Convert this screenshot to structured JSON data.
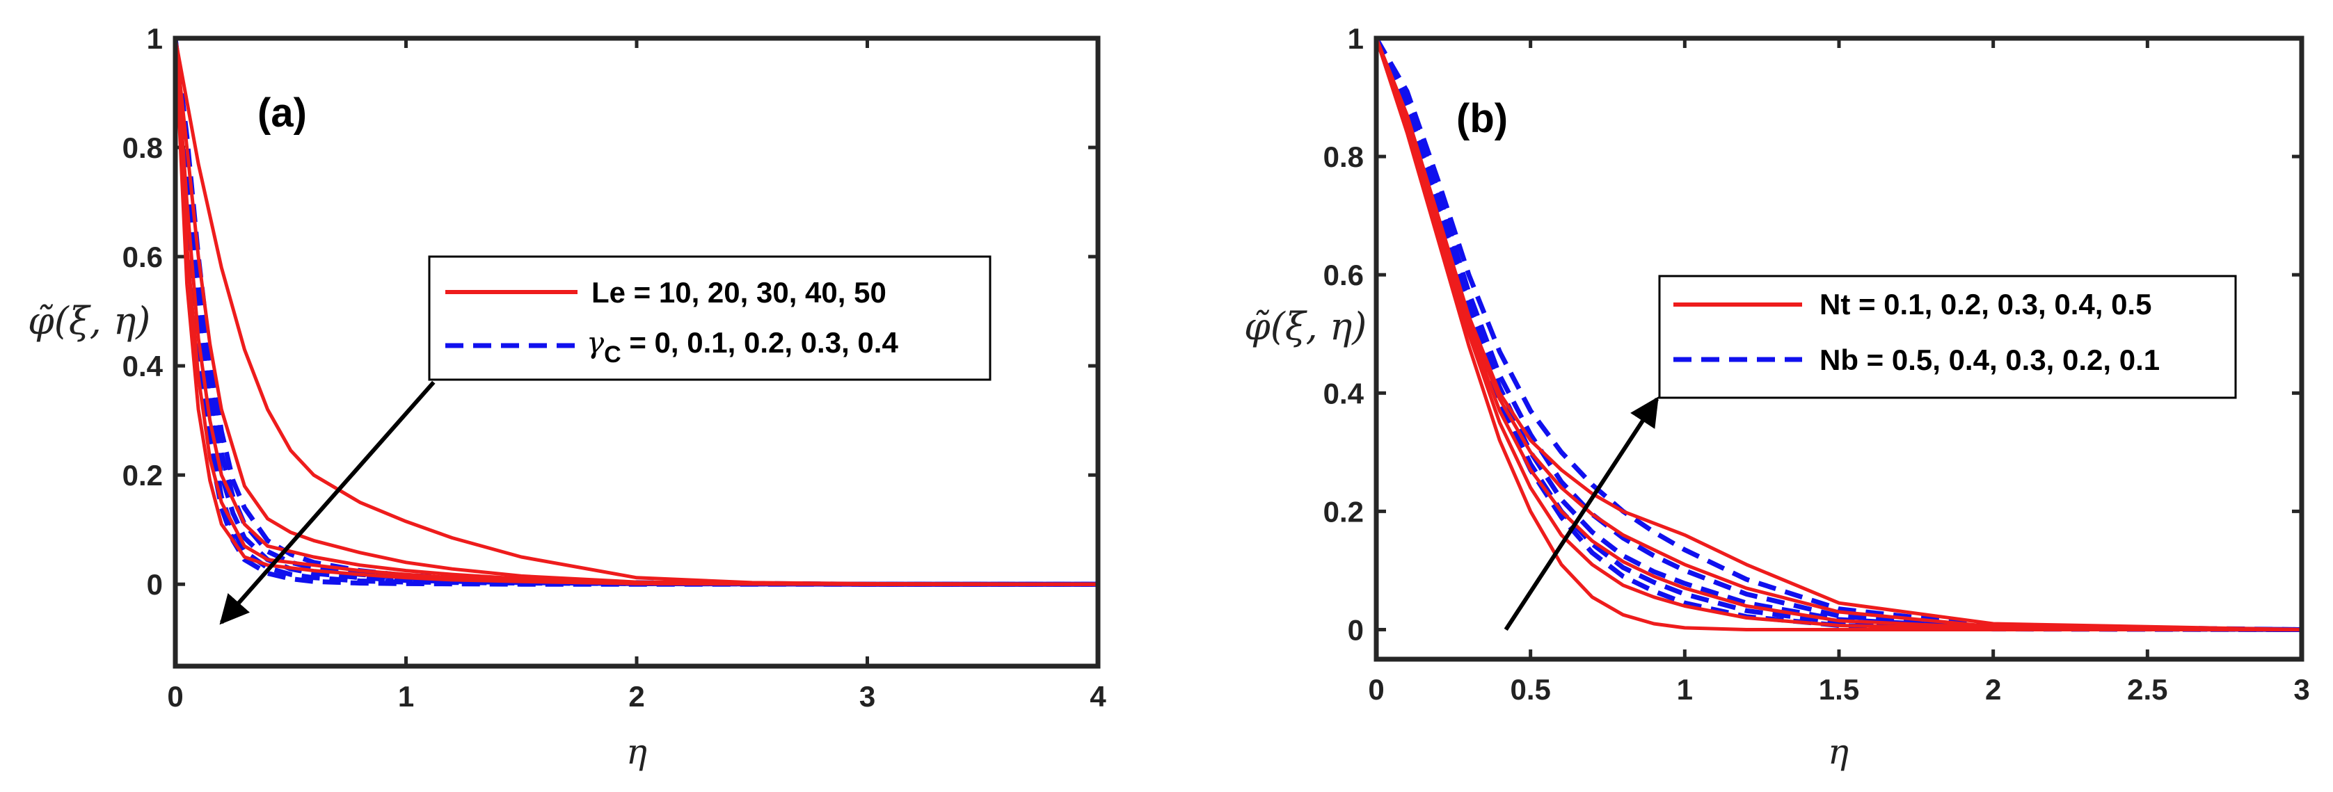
{
  "chart_data": [
    {
      "id": "a",
      "type": "line",
      "panel_label": "(a)",
      "xlabel": "η",
      "ylabel": "φ̃(ξ, η)",
      "xlim": [
        0,
        4
      ],
      "ylim": [
        -0.15,
        1
      ],
      "xticks": [
        0,
        1,
        2,
        3,
        4
      ],
      "xtick_labels": [
        "0",
        "1",
        "2",
        "3",
        "4"
      ],
      "yticks": [
        0,
        0.2,
        0.4,
        0.6,
        0.8,
        1
      ],
      "ytick_labels": [
        "0",
        "0.2",
        "0.4",
        "0.6",
        "0.8",
        "1"
      ],
      "legend": [
        {
          "label": "Le = 10, 20, 30, 40, 50",
          "style": "solid",
          "color": "#ee1c1c"
        },
        {
          "label": "0, 0.1, 0.2, 0.3, 0.4",
          "symbol": "γ",
          "subscript": "C",
          "prefix_eq": " = ",
          "style": "dashed",
          "color": "#1010ee"
        }
      ],
      "series": [
        {
          "name": "Le = 10",
          "style": "solid",
          "color": "#ee1c1c",
          "x": [
            0,
            0.1,
            0.2,
            0.3,
            0.4,
            0.5,
            0.6,
            0.8,
            1.0,
            1.2,
            1.5,
            2.0,
            2.5,
            3.0,
            4.0
          ],
          "y": [
            1,
            0.77,
            0.58,
            0.43,
            0.32,
            0.245,
            0.2,
            0.15,
            0.115,
            0.085,
            0.05,
            0.012,
            0.003,
            0.001,
            0
          ]
        },
        {
          "name": "Le = 20",
          "style": "solid",
          "color": "#ee1c1c",
          "x": [
            0,
            0.05,
            0.1,
            0.15,
            0.2,
            0.3,
            0.4,
            0.5,
            0.6,
            0.8,
            1.0,
            1.2,
            1.5,
            2.0,
            3.0,
            4.0
          ],
          "y": [
            1,
            0.8,
            0.6,
            0.44,
            0.32,
            0.18,
            0.12,
            0.095,
            0.08,
            0.058,
            0.04,
            0.028,
            0.015,
            0.004,
            0,
            0
          ]
        },
        {
          "name": "Le = 30",
          "style": "solid",
          "color": "#ee1c1c",
          "x": [
            0,
            0.05,
            0.1,
            0.15,
            0.2,
            0.3,
            0.4,
            0.5,
            0.6,
            0.8,
            1.0,
            1.2,
            1.5,
            2.0,
            3.0,
            4.0
          ],
          "y": [
            1,
            0.7,
            0.45,
            0.3,
            0.2,
            0.11,
            0.07,
            0.06,
            0.05,
            0.035,
            0.025,
            0.018,
            0.01,
            0.003,
            0,
            0
          ]
        },
        {
          "name": "Le = 40",
          "style": "solid",
          "color": "#ee1c1c",
          "x": [
            0,
            0.05,
            0.1,
            0.15,
            0.2,
            0.3,
            0.4,
            0.5,
            0.6,
            0.8,
            1.0,
            1.2,
            1.5,
            2.0,
            3.0,
            4.0
          ],
          "y": [
            1,
            0.62,
            0.38,
            0.23,
            0.15,
            0.07,
            0.045,
            0.04,
            0.035,
            0.025,
            0.018,
            0.012,
            0.007,
            0.002,
            0,
            0
          ]
        },
        {
          "name": "Le = 50",
          "style": "solid",
          "color": "#ee1c1c",
          "x": [
            0,
            0.05,
            0.1,
            0.15,
            0.2,
            0.3,
            0.4,
            0.5,
            0.6,
            0.8,
            1.0,
            1.2,
            1.5,
            2.0,
            3.0,
            4.0
          ],
          "y": [
            1,
            0.55,
            0.32,
            0.19,
            0.11,
            0.05,
            0.035,
            0.03,
            0.025,
            0.018,
            0.012,
            0.008,
            0.005,
            0.001,
            0,
            0
          ]
        },
        {
          "name": "γC = 0",
          "style": "dashed",
          "color": "#1010ee",
          "x": [
            0,
            0.05,
            0.1,
            0.15,
            0.2,
            0.25,
            0.3,
            0.4,
            0.5,
            0.6,
            0.8,
            1.0,
            1.5,
            2.0,
            3.0,
            4.0
          ],
          "y": [
            1,
            0.82,
            0.6,
            0.42,
            0.28,
            0.19,
            0.14,
            0.08,
            0.055,
            0.04,
            0.025,
            0.016,
            0.008,
            0.003,
            0,
            0
          ]
        },
        {
          "name": "γC = 0.1",
          "style": "dashed",
          "color": "#1010ee",
          "x": [
            0,
            0.05,
            0.1,
            0.15,
            0.2,
            0.25,
            0.3,
            0.4,
            0.5,
            0.6,
            0.8,
            1.0,
            1.5,
            2.0,
            3.0,
            4.0
          ],
          "y": [
            1,
            0.78,
            0.55,
            0.37,
            0.24,
            0.16,
            0.11,
            0.06,
            0.04,
            0.03,
            0.018,
            0.011,
            0.005,
            0.002,
            0,
            0
          ]
        },
        {
          "name": "γC = 0.2",
          "style": "dashed",
          "color": "#1010ee",
          "x": [
            0,
            0.05,
            0.1,
            0.15,
            0.2,
            0.25,
            0.3,
            0.4,
            0.5,
            0.6,
            0.8,
            1.0,
            1.5,
            2.0,
            3.0,
            4.0
          ],
          "y": [
            1,
            0.75,
            0.5,
            0.32,
            0.2,
            0.13,
            0.085,
            0.045,
            0.028,
            0.02,
            0.012,
            0.007,
            0.003,
            0.001,
            0,
            0
          ]
        },
        {
          "name": "γC = 0.3",
          "style": "dashed",
          "color": "#1010ee",
          "x": [
            0,
            0.05,
            0.1,
            0.15,
            0.2,
            0.25,
            0.3,
            0.4,
            0.5,
            0.6,
            0.8,
            1.0,
            1.5,
            2.0,
            3.0,
            4.0
          ],
          "y": [
            1,
            0.72,
            0.46,
            0.28,
            0.16,
            0.1,
            0.06,
            0.03,
            0.018,
            0.012,
            0.006,
            0.004,
            0.002,
            0.001,
            0,
            0
          ]
        },
        {
          "name": "γC = 0.4",
          "style": "dashed",
          "color": "#1010ee",
          "x": [
            0,
            0.05,
            0.1,
            0.15,
            0.2,
            0.25,
            0.3,
            0.4,
            0.5,
            0.6,
            0.8,
            1.0,
            1.5,
            2.0,
            3.0,
            4.0
          ],
          "y": [
            1,
            0.7,
            0.43,
            0.25,
            0.14,
            0.08,
            0.045,
            0.02,
            0.01,
            0.005,
            0.002,
            0.001,
            0,
            0,
            0,
            0
          ]
        }
      ],
      "annotation_arrow": {
        "from": [
          1.12,
          0.37
        ],
        "to": [
          0.2,
          -0.07
        ],
        "color": "#000000"
      }
    },
    {
      "id": "b",
      "type": "line",
      "panel_label": "(b)",
      "xlabel": "η",
      "ylabel": "φ̃(ξ, η)",
      "xlim": [
        0,
        3
      ],
      "ylim": [
        -0.05,
        1
      ],
      "xticks": [
        0,
        0.5,
        1,
        1.5,
        2,
        2.5,
        3
      ],
      "xtick_labels": [
        "0",
        "0.5",
        "1",
        "1.5",
        "2",
        "2.5",
        "3"
      ],
      "yticks": [
        0,
        0.2,
        0.4,
        0.6,
        0.8,
        1
      ],
      "ytick_labels": [
        "0",
        "0.2",
        "0.4",
        "0.6",
        "0.8",
        "1"
      ],
      "legend": [
        {
          "label": "Nt = 0.1, 0.2, 0.3, 0.4, 0.5",
          "style": "solid",
          "color": "#ee1c1c"
        },
        {
          "label": "Nb = 0.5, 0.4, 0.3, 0.2, 0.1",
          "style": "dashed",
          "color": "#1010ee"
        }
      ],
      "series": [
        {
          "name": "Nt = 0.1",
          "style": "solid",
          "color": "#ee1c1c",
          "x": [
            0,
            0.1,
            0.2,
            0.3,
            0.4,
            0.5,
            0.6,
            0.7,
            0.8,
            0.9,
            1.0,
            1.2,
            1.5,
            2.0,
            3.0
          ],
          "y": [
            1,
            0.84,
            0.66,
            0.48,
            0.32,
            0.2,
            0.11,
            0.055,
            0.025,
            0.01,
            0.003,
            0,
            0,
            0,
            0
          ]
        },
        {
          "name": "Nt = 0.2",
          "style": "solid",
          "color": "#ee1c1c",
          "x": [
            0,
            0.1,
            0.2,
            0.3,
            0.4,
            0.5,
            0.6,
            0.7,
            0.8,
            0.9,
            1.0,
            1.2,
            1.5,
            2.0,
            3.0
          ],
          "y": [
            1,
            0.85,
            0.67,
            0.5,
            0.35,
            0.24,
            0.16,
            0.11,
            0.075,
            0.055,
            0.04,
            0.02,
            0.007,
            0.001,
            0
          ]
        },
        {
          "name": "Nt = 0.3",
          "style": "solid",
          "color": "#ee1c1c",
          "x": [
            0,
            0.1,
            0.2,
            0.3,
            0.4,
            0.5,
            0.6,
            0.7,
            0.8,
            0.9,
            1.0,
            1.2,
            1.5,
            2.0,
            3.0
          ],
          "y": [
            1,
            0.86,
            0.68,
            0.51,
            0.37,
            0.27,
            0.2,
            0.15,
            0.115,
            0.09,
            0.07,
            0.04,
            0.015,
            0.003,
            0
          ]
        },
        {
          "name": "Nt = 0.4",
          "style": "solid",
          "color": "#ee1c1c",
          "x": [
            0,
            0.1,
            0.2,
            0.3,
            0.4,
            0.5,
            0.6,
            0.7,
            0.8,
            0.9,
            1.0,
            1.2,
            1.5,
            2.0,
            3.0
          ],
          "y": [
            1,
            0.86,
            0.69,
            0.52,
            0.39,
            0.3,
            0.24,
            0.195,
            0.16,
            0.135,
            0.11,
            0.07,
            0.03,
            0.005,
            0
          ]
        },
        {
          "name": "Nt = 0.5",
          "style": "solid",
          "color": "#ee1c1c",
          "x": [
            0,
            0.1,
            0.2,
            0.3,
            0.4,
            0.5,
            0.6,
            0.7,
            0.8,
            0.9,
            1.0,
            1.2,
            1.5,
            2.0,
            3.0
          ],
          "y": [
            1,
            0.87,
            0.7,
            0.53,
            0.4,
            0.32,
            0.27,
            0.23,
            0.2,
            0.18,
            0.16,
            0.11,
            0.045,
            0.01,
            0
          ]
        },
        {
          "name": "Nb = 0.5",
          "style": "dashed",
          "color": "#1010ee",
          "x": [
            0,
            0.1,
            0.2,
            0.3,
            0.4,
            0.5,
            0.6,
            0.7,
            0.8,
            0.9,
            1.0,
            1.2,
            1.5,
            2.0,
            3.0
          ],
          "y": [
            1,
            0.87,
            0.7,
            0.52,
            0.38,
            0.27,
            0.19,
            0.13,
            0.09,
            0.065,
            0.045,
            0.022,
            0.007,
            0.001,
            0
          ]
        },
        {
          "name": "Nb = 0.4",
          "style": "dashed",
          "color": "#1010ee",
          "x": [
            0,
            0.1,
            0.2,
            0.3,
            0.4,
            0.5,
            0.6,
            0.7,
            0.8,
            0.9,
            1.0,
            1.2,
            1.5,
            2.0,
            3.0
          ],
          "y": [
            1,
            0.88,
            0.71,
            0.54,
            0.39,
            0.28,
            0.2,
            0.145,
            0.105,
            0.08,
            0.06,
            0.032,
            0.012,
            0.002,
            0
          ]
        },
        {
          "name": "Nb = 0.3",
          "style": "dashed",
          "color": "#1010ee",
          "x": [
            0,
            0.1,
            0.2,
            0.3,
            0.4,
            0.5,
            0.6,
            0.7,
            0.8,
            0.9,
            1.0,
            1.2,
            1.5,
            2.0,
            3.0
          ],
          "y": [
            1,
            0.89,
            0.72,
            0.55,
            0.41,
            0.3,
            0.22,
            0.165,
            0.125,
            0.098,
            0.078,
            0.045,
            0.017,
            0.003,
            0
          ]
        },
        {
          "name": "Nb = 0.2",
          "style": "dashed",
          "color": "#1010ee",
          "x": [
            0,
            0.1,
            0.2,
            0.3,
            0.4,
            0.5,
            0.6,
            0.7,
            0.8,
            0.9,
            1.0,
            1.2,
            1.5,
            2.0,
            3.0
          ],
          "y": [
            1,
            0.9,
            0.74,
            0.57,
            0.43,
            0.33,
            0.25,
            0.195,
            0.155,
            0.125,
            0.1,
            0.06,
            0.023,
            0.004,
            0
          ]
        },
        {
          "name": "Nb = 0.1",
          "style": "dashed",
          "color": "#1010ee",
          "x": [
            0,
            0.1,
            0.2,
            0.3,
            0.4,
            0.5,
            0.6,
            0.7,
            0.8,
            0.9,
            1.0,
            1.2,
            1.5,
            2.0,
            3.0
          ],
          "y": [
            1,
            0.91,
            0.76,
            0.6,
            0.47,
            0.37,
            0.3,
            0.245,
            0.2,
            0.165,
            0.135,
            0.085,
            0.035,
            0.006,
            0
          ]
        }
      ],
      "annotation_arrow": {
        "from": [
          0.42,
          0.0
        ],
        "to": [
          0.91,
          0.39
        ],
        "color": "#000000"
      }
    }
  ]
}
